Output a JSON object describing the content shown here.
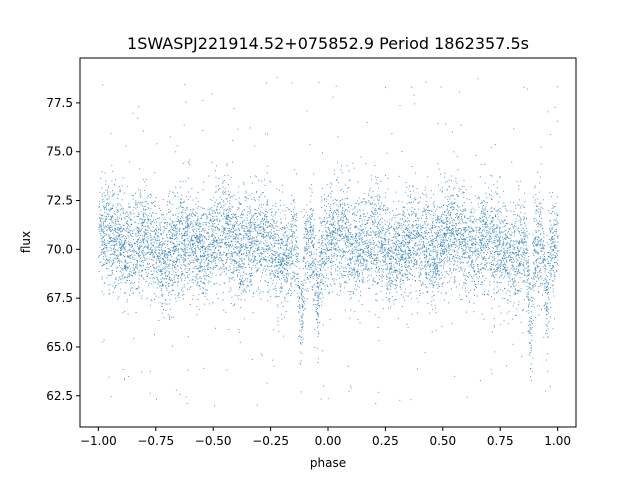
{
  "chart_data": {
    "type": "scatter",
    "title": "1SWASPJ221914.52+075852.9 Period 1862357.5s",
    "xlabel": "phase",
    "ylabel": "flux",
    "xlim": [
      -1.08,
      1.08
    ],
    "ylim": [
      60.9,
      79.8
    ],
    "xticks": [
      -1.0,
      -0.75,
      -0.5,
      -0.25,
      0.0,
      0.25,
      0.5,
      0.75,
      1.0
    ],
    "xtick_labels": [
      "−1.00",
      "−0.75",
      "−0.50",
      "−0.25",
      "0.00",
      "0.25",
      "0.50",
      "0.75",
      "1.00"
    ],
    "yticks": [
      62.5,
      65.0,
      67.5,
      70.0,
      72.5,
      75.0,
      77.5
    ],
    "ytick_labels": [
      "62.5",
      "65.0",
      "67.5",
      "70.0",
      "72.5",
      "75.0",
      "77.5"
    ],
    "grid": false,
    "marker_color": "#1f77b4",
    "series": [
      {
        "phase_range": [
          -1.0,
          1.0
        ],
        "baseline_flux": 70.3,
        "flux_scatter_sd": 1.3,
        "n_points": 9000,
        "dips": [
          {
            "phase": -0.12,
            "min_flux": 64.5
          },
          {
            "phase": 0.88,
            "min_flux": 64.5
          },
          {
            "phase": -0.05,
            "min_flux": 67.5
          },
          {
            "phase": 0.95,
            "min_flux": 67.5
          }
        ],
        "outlier_flux_range": [
          62.0,
          79.0
        ]
      }
    ]
  }
}
